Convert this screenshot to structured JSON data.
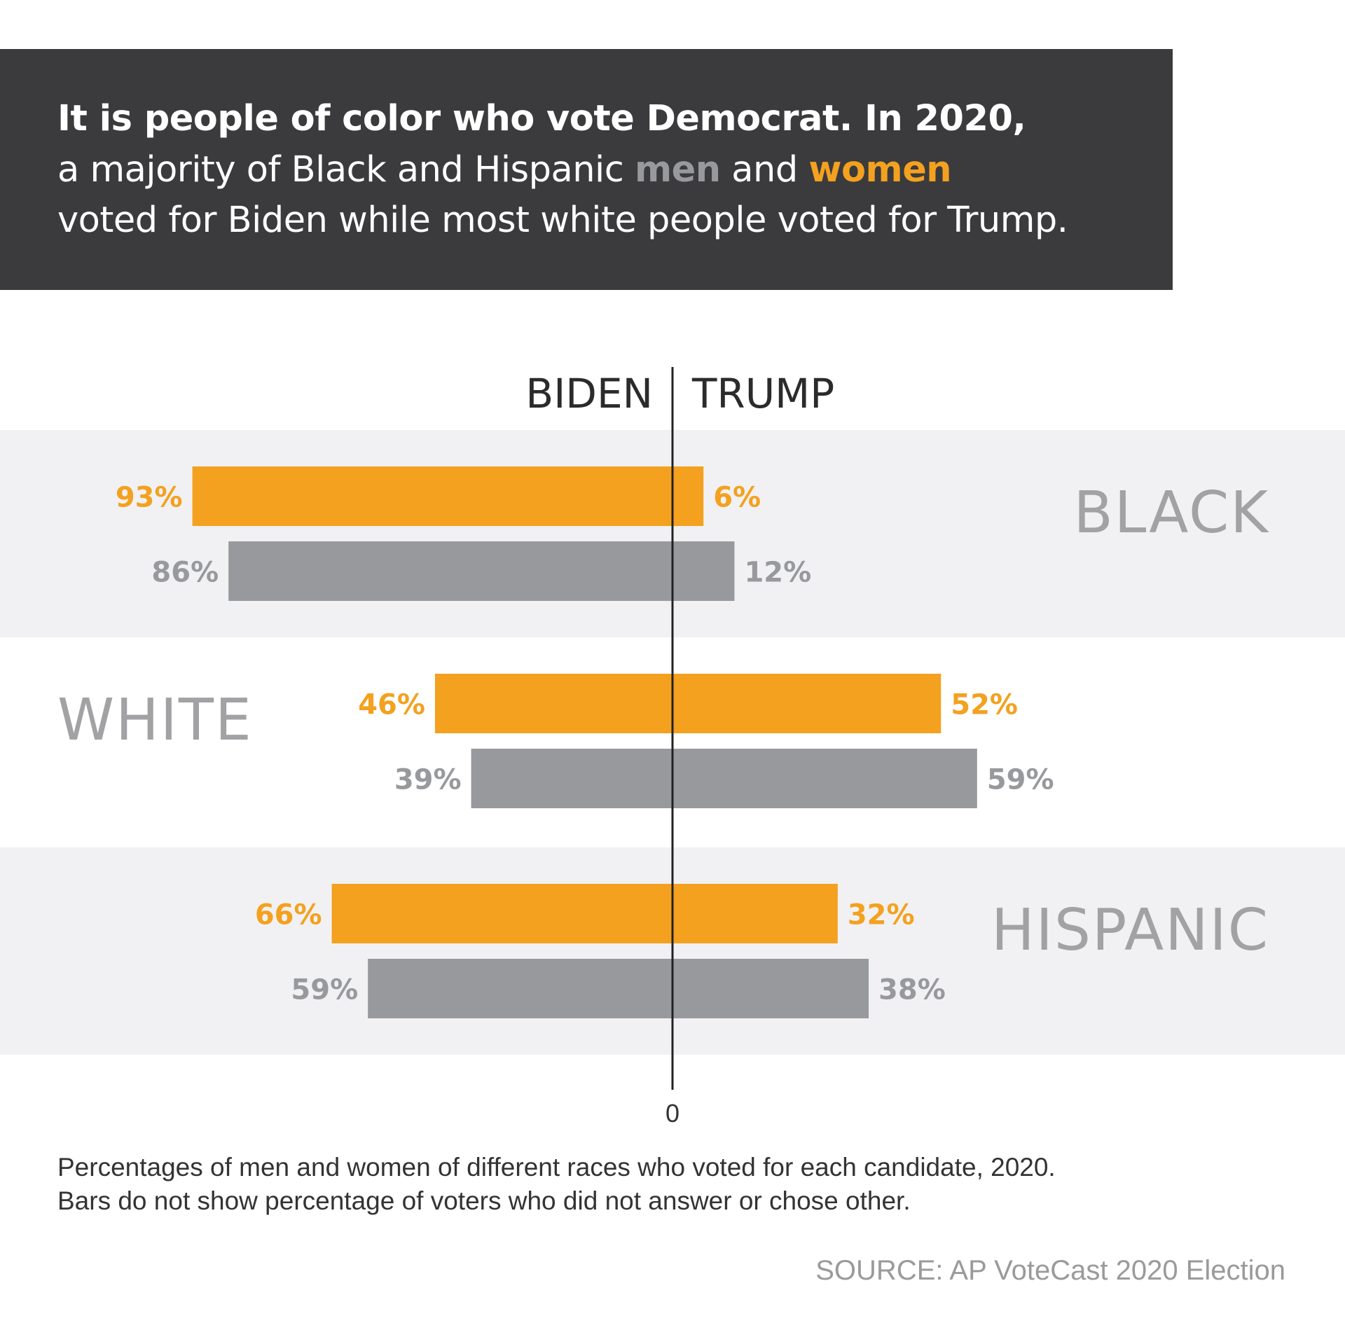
{
  "header": {
    "line1": "It is people of color who vote Democrat. In 2020,",
    "line2_before": "a majority of Black and Hispanic ",
    "line2_men": "men",
    "line2_middle": " and ",
    "line2_women": "women",
    "line3": "voted for Biden while most white people voted for Trump."
  },
  "colors": {
    "women": "#f3a11f",
    "men": "#98999c",
    "band": "#f1f1f3",
    "header_bg": "#3b3b3d",
    "axis": "#222222",
    "group_label": "#a2a2a5"
  },
  "chart_data": {
    "type": "bar",
    "orientation": "horizontal-diverging",
    "left_label": "BIDEN",
    "right_label": "TRUMP",
    "zero_label": "0",
    "groups": [
      {
        "name": "BLACK",
        "women": {
          "biden": 93,
          "trump": 6
        },
        "men": {
          "biden": 86,
          "trump": 12
        }
      },
      {
        "name": "WHITE",
        "women": {
          "biden": 46,
          "trump": 52
        },
        "men": {
          "biden": 39,
          "trump": 59
        }
      },
      {
        "name": "HISPANIC",
        "women": {
          "biden": 66,
          "trump": 32
        },
        "men": {
          "biden": 59,
          "trump": 38
        }
      }
    ],
    "series": [
      {
        "name": "women"
      },
      {
        "name": "men"
      }
    ],
    "unit": "%",
    "xlim": [
      -100,
      100
    ]
  },
  "caption": {
    "line1": "Percentages of men and women of different races who voted for each candidate, 2020.",
    "line2": "Bars do not show percentage of voters who did not answer or chose other."
  },
  "source": "SOURCE: AP VoteCast 2020 Election"
}
